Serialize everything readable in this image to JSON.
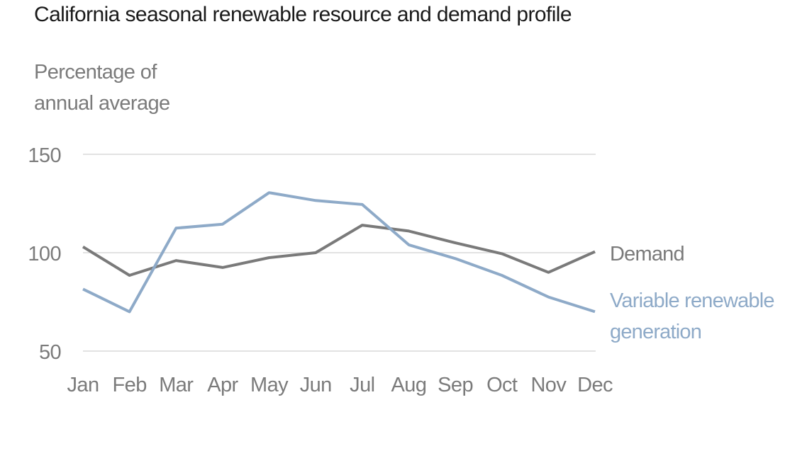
{
  "chart_data": {
    "type": "line",
    "title": "California seasonal renewable resource and demand profile",
    "ylabel_lines": [
      "Percentage of",
      "annual average"
    ],
    "xlabel": "",
    "categories": [
      "Jan",
      "Feb",
      "Mar",
      "Apr",
      "May",
      "Jun",
      "Jul",
      "Aug",
      "Sep",
      "Oct",
      "Nov",
      "Dec"
    ],
    "yticks": [
      50,
      100,
      150
    ],
    "ylim": [
      50,
      150
    ],
    "grid": true,
    "legend": "direct-labels-right",
    "series": [
      {
        "name": "Demand",
        "label_lines": [
          "Demand"
        ],
        "color": "#7a7a7a",
        "values": [
          103,
          88.5,
          96,
          92.5,
          97.5,
          100,
          114,
          111,
          105,
          99.5,
          90,
          100.5
        ]
      },
      {
        "name": "Variable renewable generation",
        "label_lines": [
          "Variable renewable",
          "generation"
        ],
        "color": "#8eaac8",
        "values": [
          81.5,
          70,
          112.5,
          114.5,
          130.5,
          126.5,
          124.5,
          104,
          97,
          88.5,
          77.5,
          70
        ]
      }
    ]
  }
}
